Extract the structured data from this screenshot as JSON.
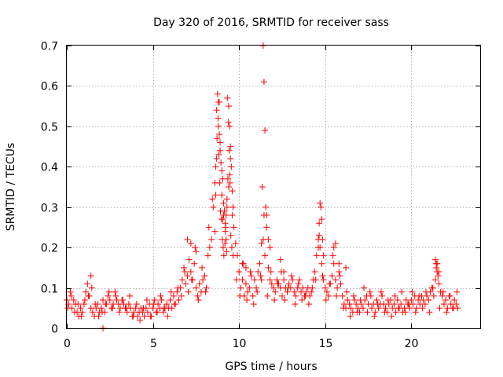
{
  "chart_data": {
    "type": "scatter",
    "title": "Day 320 of 2016, SRMTID for receiver sass",
    "xlabel": "GPS time / hours",
    "ylabel": "SRMTID / TECUs",
    "xlim": [
      0,
      24
    ],
    "ylim": [
      0,
      0.7
    ],
    "xticks": [
      0,
      5,
      10,
      15,
      20
    ],
    "xtick_labels": [
      "0",
      "5",
      "10",
      "15",
      "20"
    ],
    "yticks": [
      0,
      0.1,
      0.2,
      0.3,
      0.4,
      0.5,
      0.6,
      0.7
    ],
    "ytick_labels": [
      "0",
      "0.1",
      "0.2",
      "0.3",
      "0.4",
      "0.5",
      "0.6",
      "0.7"
    ],
    "grid": true,
    "marker": "+",
    "series": [
      {
        "name": "SRMTID",
        "color": "#ff0000",
        "x": [
          0.0,
          0.1,
          0.2,
          0.3,
          0.4,
          0.5,
          0.6,
          0.7,
          0.8,
          0.9,
          1.0,
          1.1,
          1.2,
          1.3,
          1.4,
          1.5,
          1.6,
          1.7,
          1.8,
          1.9,
          2.0,
          2.1,
          2.2,
          2.3,
          2.4,
          2.5,
          2.6,
          2.7,
          2.8,
          2.9,
          3.0,
          3.1,
          3.2,
          3.3,
          3.4,
          3.5,
          3.6,
          3.7,
          3.8,
          3.9,
          4.0,
          4.1,
          4.2,
          4.3,
          4.4,
          4.5,
          4.6,
          4.7,
          4.8,
          4.9,
          5.0,
          5.1,
          5.2,
          5.3,
          5.4,
          5.5,
          5.6,
          5.7,
          5.8,
          5.9,
          6.0,
          6.1,
          6.2,
          6.3,
          6.4,
          6.5,
          6.6,
          6.7,
          6.8,
          6.9,
          7.0,
          7.1,
          7.2,
          7.3,
          7.4,
          7.5,
          7.6,
          7.7,
          7.8,
          7.9,
          8.0,
          8.1,
          8.2,
          8.3,
          8.4,
          8.5,
          8.6,
          8.7,
          8.8,
          8.9,
          9.0,
          9.1,
          9.2,
          9.3,
          9.4,
          9.5,
          9.6,
          9.7,
          9.8,
          9.9,
          10.0,
          10.1,
          10.2,
          10.3,
          10.4,
          10.5,
          10.6,
          10.7,
          10.8,
          10.9,
          11.0,
          11.1,
          11.2,
          11.3,
          11.4,
          11.5,
          11.6,
          11.7,
          11.8,
          11.9,
          12.0,
          12.1,
          12.2,
          12.3,
          12.4,
          12.5,
          12.6,
          12.7,
          12.8,
          12.9,
          13.0,
          13.1,
          13.2,
          13.3,
          13.4,
          13.5,
          13.6,
          13.7,
          13.8,
          13.9,
          14.0,
          14.1,
          14.2,
          14.3,
          14.4,
          14.5,
          14.6,
          14.7,
          14.8,
          14.9,
          15.0,
          15.1,
          15.2,
          15.3,
          15.4,
          15.5,
          15.6,
          15.7,
          15.8,
          15.9,
          16.0,
          16.1,
          16.2,
          16.3,
          16.4,
          16.5,
          16.6,
          16.7,
          16.8,
          16.9,
          17.0,
          17.1,
          17.2,
          17.3,
          17.4,
          17.5,
          17.6,
          17.7,
          17.8,
          17.9,
          18.0,
          18.1,
          18.2,
          18.3,
          18.4,
          18.5,
          18.6,
          18.7,
          18.8,
          18.9,
          19.0,
          19.1,
          19.2,
          19.3,
          19.4,
          19.5,
          19.6,
          19.7,
          19.8,
          19.9,
          20.0,
          20.1,
          20.2,
          20.3,
          20.4,
          20.5,
          20.6,
          20.7,
          20.8,
          20.9,
          21.0,
          21.1,
          21.2,
          21.3,
          21.4,
          21.5,
          21.6,
          21.7,
          21.8,
          21.9,
          22.0,
          22.1,
          22.2,
          22.3,
          22.4,
          22.5,
          22.6,
          22.7,
          0.05,
          0.25,
          0.45,
          0.65,
          0.85,
          1.05,
          1.25,
          1.45,
          1.65,
          1.85,
          2.05,
          2.25,
          2.45,
          2.65,
          2.85,
          3.05,
          3.25,
          3.45,
          3.65,
          3.85,
          4.05,
          4.25,
          4.45,
          4.65,
          4.85,
          5.05,
          5.25,
          5.45,
          5.65,
          5.85,
          6.05,
          6.25,
          6.45,
          6.65,
          6.85,
          7.05,
          7.25,
          7.45,
          7.65,
          7.85,
          8.05,
          8.25,
          8.45,
          8.65,
          8.85,
          9.05,
          9.25,
          9.45,
          9.65,
          9.85,
          10.05,
          10.25,
          10.45,
          10.65,
          10.85,
          11.05,
          11.25,
          11.45,
          11.65,
          11.85,
          12.05,
          12.25,
          12.45,
          12.65,
          12.85,
          13.05,
          13.25,
          13.45,
          13.65,
          13.85,
          14.05,
          14.25,
          14.45,
          14.65,
          14.85,
          15.05,
          15.25,
          15.45,
          15.65,
          15.85,
          16.05,
          16.25,
          16.45,
          16.65,
          16.85,
          17.05,
          17.25,
          17.45,
          17.65,
          17.85,
          18.05,
          18.25,
          18.45,
          18.65,
          18.85,
          19.05,
          19.25,
          19.45,
          19.65,
          19.85,
          20.05,
          20.25,
          20.45,
          20.65,
          20.85,
          21.05,
          21.25,
          21.45,
          21.65,
          21.85,
          22.05,
          22.25,
          22.45,
          22.65,
          8.7,
          8.75,
          8.8,
          8.85,
          8.9,
          8.95,
          9.0,
          9.05,
          9.1,
          9.15,
          9.2,
          9.25,
          9.3,
          9.35,
          9.4,
          9.45,
          9.5,
          9.55,
          9.6,
          9.65,
          8.6,
          8.65,
          8.72,
          8.78,
          8.82,
          8.88,
          8.92,
          8.98,
          9.02,
          9.08,
          9.12,
          9.18,
          9.22,
          9.28,
          9.32,
          9.38,
          9.42,
          9.48,
          9.52,
          9.58,
          11.3,
          11.35,
          11.4,
          11.45,
          11.5,
          11.55,
          11.6,
          11.7,
          11.8,
          14.6,
          14.65,
          14.7,
          14.75,
          14.8,
          14.85,
          14.9,
          21.4,
          21.45,
          21.5,
          21.55,
          21.6,
          1.4,
          2.1,
          7.0,
          7.2,
          7.5,
          15.5,
          15.6,
          15.8,
          16.2,
          10.2,
          10.4,
          12.4,
          12.6
        ],
        "y": [
          0.07,
          0.06,
          0.09,
          0.05,
          0.07,
          0.06,
          0.04,
          0.03,
          0.05,
          0.04,
          0.06,
          0.09,
          0.11,
          0.08,
          0.05,
          0.04,
          0.03,
          0.05,
          0.06,
          0.04,
          0.05,
          0.07,
          0.04,
          0.06,
          0.08,
          0.07,
          0.05,
          0.06,
          0.09,
          0.07,
          0.06,
          0.05,
          0.07,
          0.06,
          0.05,
          0.04,
          0.06,
          0.05,
          0.03,
          0.04,
          0.05,
          0.03,
          0.04,
          0.05,
          0.04,
          0.03,
          0.05,
          0.04,
          0.06,
          0.03,
          0.05,
          0.07,
          0.04,
          0.06,
          0.05,
          0.07,
          0.04,
          0.05,
          0.06,
          0.05,
          0.07,
          0.05,
          0.08,
          0.06,
          0.09,
          0.07,
          0.1,
          0.12,
          0.15,
          0.11,
          0.13,
          0.17,
          0.14,
          0.12,
          0.16,
          0.1,
          0.08,
          0.11,
          0.09,
          0.12,
          0.13,
          0.1,
          0.18,
          0.2,
          0.22,
          0.3,
          0.36,
          0.42,
          0.5,
          0.46,
          0.33,
          0.28,
          0.24,
          0.3,
          0.35,
          0.42,
          0.28,
          0.25,
          0.21,
          0.18,
          0.14,
          0.1,
          0.12,
          0.08,
          0.11,
          0.09,
          0.1,
          0.13,
          0.08,
          0.12,
          0.1,
          0.14,
          0.16,
          0.12,
          0.22,
          0.18,
          0.25,
          0.15,
          0.12,
          0.11,
          0.1,
          0.09,
          0.12,
          0.11,
          0.1,
          0.08,
          0.12,
          0.1,
          0.09,
          0.11,
          0.1,
          0.12,
          0.09,
          0.08,
          0.1,
          0.12,
          0.09,
          0.1,
          0.08,
          0.09,
          0.1,
          0.08,
          0.09,
          0.12,
          0.14,
          0.18,
          0.22,
          0.2,
          0.16,
          0.12,
          0.1,
          0.09,
          0.08,
          0.11,
          0.13,
          0.16,
          0.12,
          0.1,
          0.14,
          0.11,
          0.08,
          0.06,
          0.05,
          0.07,
          0.06,
          0.05,
          0.04,
          0.07,
          0.06,
          0.05,
          0.04,
          0.06,
          0.05,
          0.07,
          0.08,
          0.06,
          0.09,
          0.05,
          0.06,
          0.04,
          0.07,
          0.05,
          0.06,
          0.08,
          0.06,
          0.05,
          0.04,
          0.06,
          0.07,
          0.05,
          0.06,
          0.04,
          0.07,
          0.05,
          0.06,
          0.04,
          0.05,
          0.07,
          0.06,
          0.05,
          0.07,
          0.06,
          0.08,
          0.05,
          0.07,
          0.06,
          0.08,
          0.07,
          0.06,
          0.08,
          0.07,
          0.09,
          0.1,
          0.08,
          0.12,
          0.14,
          0.11,
          0.09,
          0.08,
          0.06,
          0.07,
          0.05,
          0.08,
          0.06,
          0.05,
          0.07,
          0.06,
          0.05,
          0.05,
          0.08,
          0.04,
          0.06,
          0.03,
          0.07,
          0.08,
          0.1,
          0.06,
          0.03,
          0.04,
          0.06,
          0.09,
          0.05,
          0.08,
          0.04,
          0.07,
          0.05,
          0.08,
          0.03,
          0.06,
          0.02,
          0.05,
          0.07,
          0.03,
          0.06,
          0.04,
          0.08,
          0.05,
          0.03,
          0.09,
          0.06,
          0.1,
          0.08,
          0.14,
          0.09,
          0.12,
          0.2,
          0.07,
          0.15,
          0.09,
          0.25,
          0.32,
          0.4,
          0.56,
          0.27,
          0.22,
          0.38,
          0.18,
          0.12,
          0.08,
          0.16,
          0.07,
          0.14,
          0.06,
          0.09,
          0.13,
          0.28,
          0.08,
          0.14,
          0.07,
          0.11,
          0.14,
          0.07,
          0.1,
          0.13,
          0.06,
          0.11,
          0.07,
          0.08,
          0.06,
          0.1,
          0.12,
          0.26,
          0.13,
          0.07,
          0.11,
          0.18,
          0.08,
          0.13,
          0.05,
          0.09,
          0.03,
          0.08,
          0.04,
          0.07,
          0.1,
          0.04,
          0.08,
          0.03,
          0.06,
          0.09,
          0.04,
          0.07,
          0.03,
          0.08,
          0.05,
          0.09,
          0.04,
          0.06,
          0.09,
          0.04,
          0.08,
          0.05,
          0.09,
          0.04,
          0.1,
          0.16,
          0.05,
          0.09,
          0.04,
          0.08,
          0.05,
          0.09,
          0.54,
          0.58,
          0.56,
          0.48,
          0.44,
          0.41,
          0.39,
          0.37,
          0.31,
          0.29,
          0.26,
          0.28,
          0.32,
          0.37,
          0.55,
          0.5,
          0.45,
          0.4,
          0.34,
          0.3,
          0.24,
          0.33,
          0.47,
          0.52,
          0.43,
          0.36,
          0.29,
          0.27,
          0.22,
          0.2,
          0.18,
          0.21,
          0.25,
          0.19,
          0.57,
          0.51,
          0.44,
          0.36,
          0.23,
          0.2,
          0.21,
          0.35,
          0.7,
          0.61,
          0.49,
          0.3,
          0.28,
          0.22,
          0.2,
          0.2,
          0.23,
          0.31,
          0.3,
          0.27,
          0.22,
          0.18,
          0.17,
          0.15,
          0.16,
          0.13,
          0.14,
          0.13,
          0.0,
          0.22,
          0.21,
          0.19,
          0.2,
          0.21,
          0.16,
          0.15,
          0.16,
          0.15,
          0.17,
          0.14
        ]
      }
    ]
  }
}
